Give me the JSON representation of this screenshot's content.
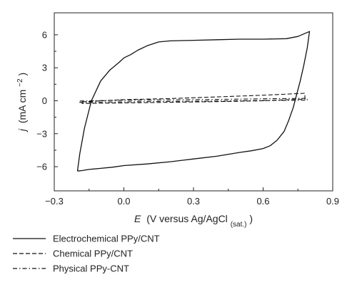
{
  "chart_data": {
    "type": "line",
    "title": "",
    "xlabel": {
      "var": "E",
      "text": "(V versus Ag/AgCl",
      "sub": "(sat.)",
      "close": ")"
    },
    "ylabel": {
      "var": "j",
      "text": "(mA cm",
      "sup": "−2",
      "close": ")"
    },
    "xlim": [
      -0.3,
      0.9
    ],
    "ylim": [
      -8.2,
      8.0
    ],
    "xticks": [
      -0.3,
      0.0,
      0.3,
      0.6,
      0.9
    ],
    "xtick_labels": [
      "−0.3",
      "0.0",
      "0.3",
      "0.6",
      "0.9"
    ],
    "yticks": [
      -6,
      -3,
      0,
      3,
      6
    ],
    "ytick_labels": [
      "−6",
      "−3",
      "0",
      "3",
      "6"
    ],
    "grid": false,
    "legend_position": "below plot, left",
    "series": [
      {
        "name": "Electrochemical PPy/CNT",
        "dash": "solid",
        "color": "#111111",
        "x": [
          -0.2,
          -0.19,
          -0.17,
          -0.14,
          -0.1,
          -0.06,
          -0.02,
          0.0,
          0.03,
          0.06,
          0.1,
          0.15,
          0.2,
          0.3,
          0.4,
          0.5,
          0.6,
          0.7,
          0.75,
          0.8,
          0.8,
          0.79,
          0.775,
          0.76,
          0.745,
          0.73,
          0.71,
          0.69,
          0.66,
          0.63,
          0.6,
          0.55,
          0.5,
          0.4,
          0.3,
          0.2,
          0.1,
          0.0,
          -0.05,
          -0.1,
          -0.15,
          -0.18,
          -0.2
        ],
        "y": [
          -6.4,
          -4.8,
          -2.5,
          0.0,
          1.8,
          2.8,
          3.5,
          3.9,
          4.2,
          4.6,
          5.0,
          5.35,
          5.45,
          5.5,
          5.55,
          5.6,
          5.6,
          5.65,
          5.85,
          6.3,
          6.3,
          4.8,
          3.2,
          1.8,
          0.6,
          -0.6,
          -1.8,
          -2.8,
          -3.6,
          -4.1,
          -4.35,
          -4.55,
          -4.7,
          -5.05,
          -5.3,
          -5.55,
          -5.75,
          -5.9,
          -6.05,
          -6.15,
          -6.25,
          -6.35,
          -6.4
        ]
      },
      {
        "name": "Chemical PPy/CNT",
        "dash": "dashed",
        "color": "#111111",
        "x": [
          -0.18,
          0.0,
          0.2,
          0.4,
          0.6,
          0.78,
          0.78,
          0.6,
          0.4,
          0.2,
          0.0,
          -0.18,
          -0.18
        ],
        "y": [
          -0.1,
          0.1,
          0.2,
          0.35,
          0.5,
          0.68,
          0.15,
          0.0,
          -0.08,
          -0.14,
          -0.2,
          -0.25,
          -0.1
        ]
      },
      {
        "name": "Physical PPy-CNT",
        "dash": "dashdot",
        "color": "#111111",
        "x": [
          -0.19,
          0.0,
          0.2,
          0.4,
          0.6,
          0.79,
          0.79,
          0.6,
          0.4,
          0.2,
          0.0,
          -0.19,
          -0.19
        ],
        "y": [
          -0.02,
          0.05,
          0.08,
          0.12,
          0.18,
          0.22,
          0.05,
          0.02,
          -0.02,
          -0.06,
          -0.1,
          -0.15,
          -0.02
        ]
      }
    ]
  }
}
